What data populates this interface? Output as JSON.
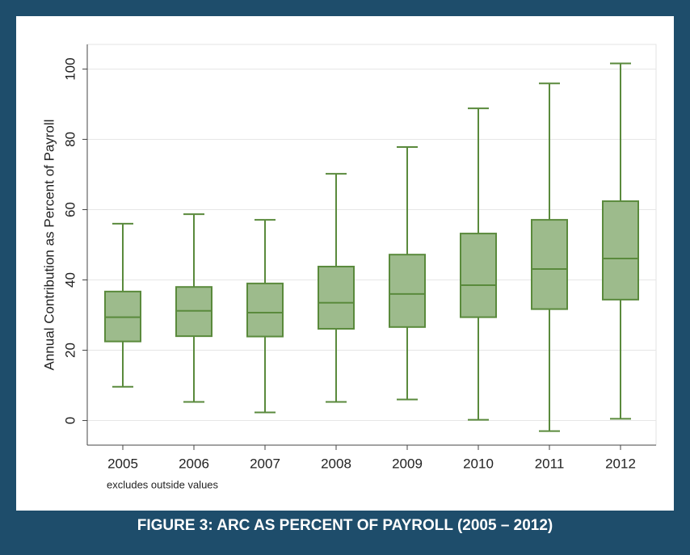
{
  "chart_data": {
    "type": "box",
    "caption": "FIGURE 3: ARC AS PERCENT OF PAYROLL (2005 – 2012)",
    "y_label": "Annual Contribution as Percent of Payroll",
    "note": "excludes outside values",
    "categories": [
      "2005",
      "2006",
      "2007",
      "2008",
      "2009",
      "2010",
      "2011",
      "2012"
    ],
    "whisker_low": [
      9.6,
      5.3,
      2.3,
      5.3,
      6,
      0.2,
      -3,
      0.5
    ],
    "q1": [
      22.5,
      24,
      23.9,
      26.1,
      26.6,
      29.4,
      31.7,
      34.4
    ],
    "median": [
      29.4,
      31.2,
      30.7,
      33.5,
      36,
      38.5,
      43.1,
      46.1
    ],
    "q3": [
      36.7,
      38,
      39,
      43.8,
      47.2,
      53.2,
      57.1,
      62.4
    ],
    "whisker_high": [
      56,
      58.7,
      57.1,
      70.2,
      77.8,
      88.8,
      95.9,
      101.6
    ],
    "color": "#9dbb8c",
    "edge_color": "#5a8a3c",
    "ylim": [
      -7,
      107
    ],
    "yticks": [
      0,
      20,
      40,
      60,
      80,
      100
    ],
    "grid": true
  }
}
